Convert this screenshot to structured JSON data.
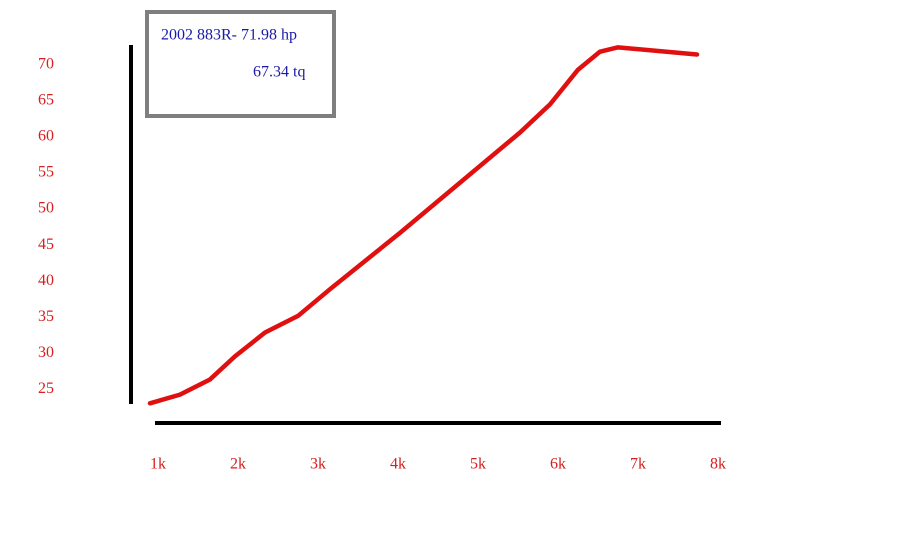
{
  "chart_data": {
    "type": "line",
    "annotations": [
      "2002 883R- 71.98 hp",
      "67.34 tq"
    ],
    "x": [
      900,
      1275,
      1650,
      1962,
      2338,
      2750,
      3150,
      4025,
      5525,
      5900,
      6250,
      6525,
      6750,
      7738
    ],
    "series": [
      {
        "color": "#e01010",
        "values": [
          23.1,
          24.3,
          26.4,
          29.6,
          32.9,
          35.2,
          38.9,
          46.7,
          60.6,
          64.5,
          69.3,
          71.8,
          72.4,
          71.4
        ]
      }
    ],
    "xlim": [
      900,
      8000
    ],
    "xticks": [
      {
        "value": 1000,
        "label": "1k"
      },
      {
        "value": 2000,
        "label": "2k"
      },
      {
        "value": 3000,
        "label": "3k"
      },
      {
        "value": 4000,
        "label": "4k"
      },
      {
        "value": 5000,
        "label": "5k"
      },
      {
        "value": 6000,
        "label": "6k"
      },
      {
        "value": 7000,
        "label": "7k"
      },
      {
        "value": 8000,
        "label": "8k"
      }
    ],
    "ylim": [
      23,
      73
    ],
    "yticks": [
      25,
      30,
      35,
      40,
      45,
      50,
      55,
      60,
      65,
      70
    ],
    "tick_color": "#d81e1e",
    "grid": false
  }
}
